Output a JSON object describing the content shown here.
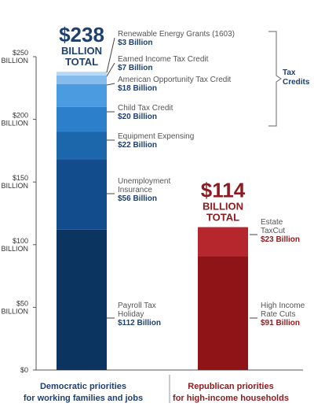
{
  "chart_data": {
    "type": "bar",
    "stacked": true,
    "y_unit": "BILLION",
    "ylim": [
      0,
      250
    ],
    "yticks": [
      {
        "value": 0,
        "label": "$0"
      },
      {
        "value": 50,
        "label": "$50",
        "sub": "BILLION"
      },
      {
        "value": 100,
        "label": "$100",
        "sub": "BILLION"
      },
      {
        "value": 150,
        "label": "$150",
        "sub": "BILLION"
      },
      {
        "value": 200,
        "label": "$200",
        "sub": "BILLION"
      },
      {
        "value": 250,
        "label": "$250",
        "sub": "BILLION"
      }
    ],
    "bars": [
      {
        "category": [
          "Democratic priorities",
          "for working families and jobs"
        ],
        "total": {
          "value": "$238",
          "lines": [
            "BILLION",
            "TOTAL"
          ]
        },
        "color": "#1f3f6e",
        "segments": [
          {
            "name": [
              "Payroll Tax",
              "Holiday"
            ],
            "value": 112,
            "value_label": "$112 Billion",
            "color": "#0c3461"
          },
          {
            "name": [
              "Unemployment",
              "Insurance"
            ],
            "value": 56,
            "value_label": "$56 Billion",
            "color": "#124c8c"
          },
          {
            "name": [
              "Equipment Expensing"
            ],
            "value": 22,
            "value_label": "$22 Billion",
            "color": "#1c66ac"
          },
          {
            "name": [
              "Child Tax Credit"
            ],
            "value": 20,
            "value_label": "$20 Billion",
            "color": "#2c7fcb"
          },
          {
            "name": [
              "American Opportunity Tax Credit"
            ],
            "value": 18,
            "value_label": "$18 Billion",
            "color": "#4a9be0"
          },
          {
            "name": [
              "Earned Income Tax Credit"
            ],
            "value": 7,
            "value_label": "$7 Billion",
            "color": "#86bcec"
          },
          {
            "name": [
              "Renewable Energy Grants (1603)"
            ],
            "value": 3,
            "value_label": "$3 Billion",
            "color": "#b9d8f5"
          }
        ]
      },
      {
        "category": [
          "Republican priorities",
          "for high-income households"
        ],
        "total": {
          "value": "$114",
          "lines": [
            "BILLION",
            "TOTAL"
          ]
        },
        "color": "#8e1a1f",
        "segments": [
          {
            "name": [
              "High Income",
              "Rate Cuts"
            ],
            "value": 91,
            "value_label": "$91 Billion",
            "color": "#8e1418"
          },
          {
            "name": [
              "Estate",
              "TaxCut"
            ],
            "value": 23,
            "value_label": "$23 Billion",
            "color": "#b5272c"
          }
        ]
      }
    ],
    "bracket": {
      "label": [
        "Tax",
        "Credits"
      ],
      "segments": [
        "Child Tax Credit",
        "American Opportunity Tax Credit",
        "Earned Income Tax Credit",
        "Renewable Energy Grants (1603)"
      ]
    }
  }
}
